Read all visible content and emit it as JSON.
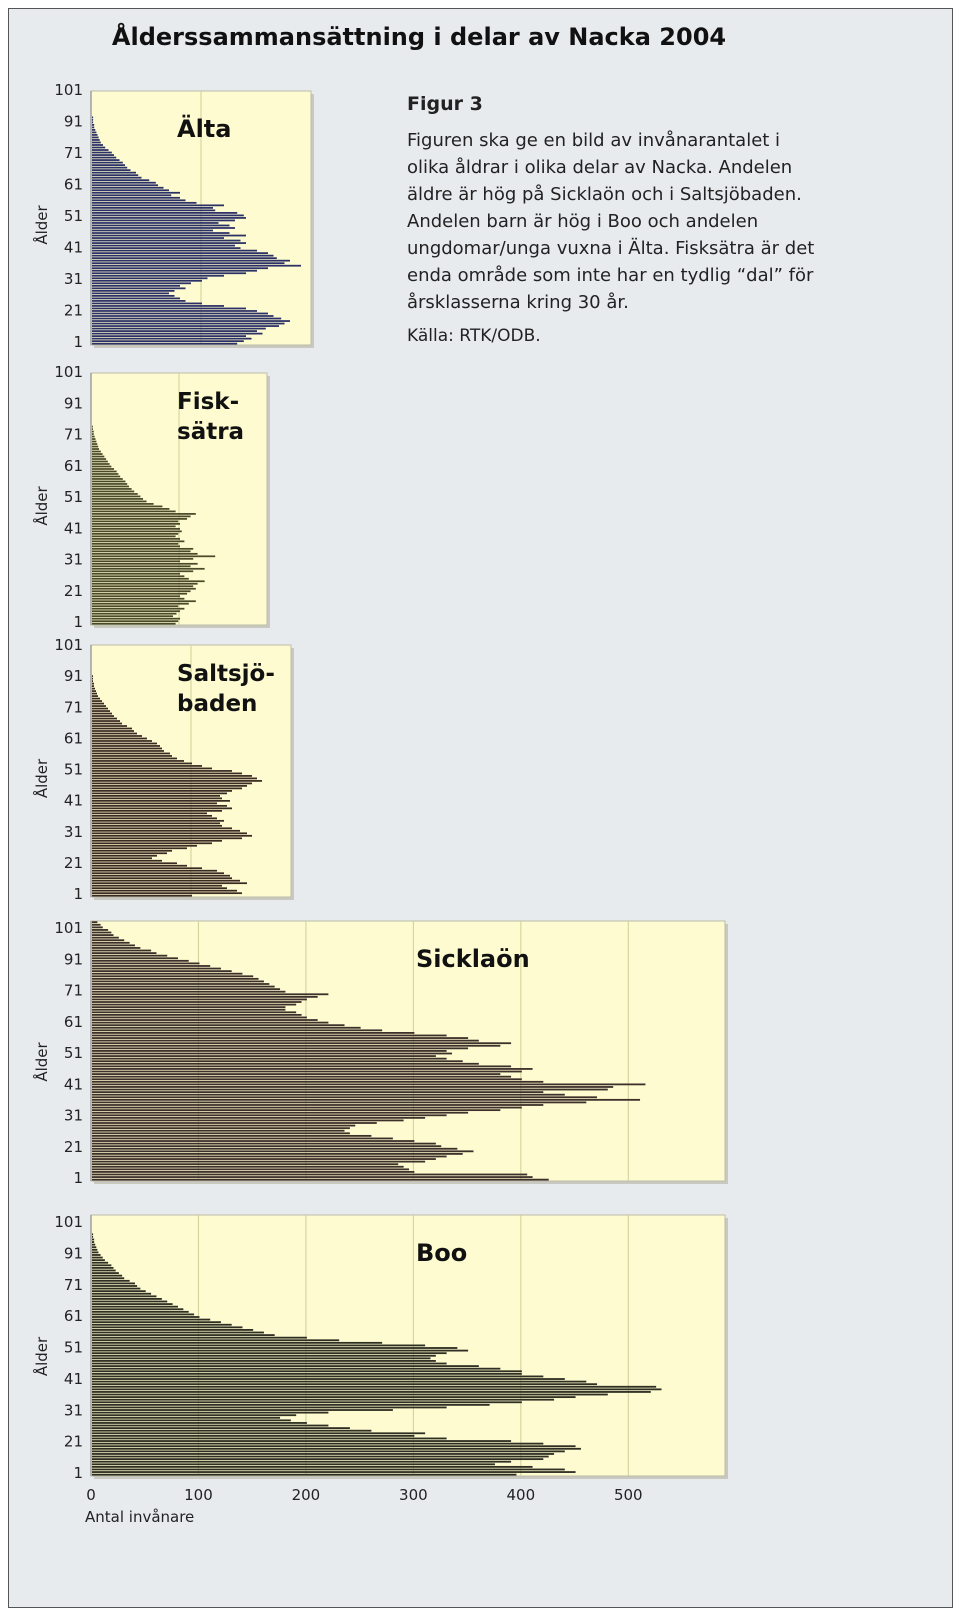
{
  "title": "Ålderssammansättning i delar av Nacka 2004",
  "caption": {
    "heading": "Figur 3",
    "body": "Figuren ska ge en bild av invånarantalet i olika åldrar i olika delar av Nacka. Andelen äldre är hög på Sicklaön och i Saltsjöbaden. Andelen barn är hög i Boo och andelen ungdomar/unga vuxna i Älta. Fisksätra är det enda område som inte har en tydlig “dal” för årsklasserna kring 30 år.",
    "source": "Källa: RTK/ODB."
  },
  "chart_data": [
    {
      "type": "bar",
      "orientation": "horizontal",
      "title": "Älta",
      "ylabel": "Ålder",
      "xlim": [
        0,
        200
      ],
      "y_ticks": [
        "1",
        "21",
        "31",
        "41",
        "51",
        "61",
        "71",
        "91",
        "101"
      ],
      "bar_color": "#2b3066",
      "ages": [
        1,
        101
      ],
      "values": [
        132,
        138,
        145,
        140,
        155,
        150,
        158,
        170,
        175,
        180,
        172,
        165,
        160,
        150,
        140,
        120,
        100,
        85,
        80,
        75,
        70,
        75,
        85,
        80,
        90,
        100,
        105,
        120,
        140,
        150,
        160,
        190,
        175,
        180,
        168,
        165,
        160,
        150,
        135,
        130,
        140,
        135,
        120,
        140,
        125,
        110,
        130,
        125,
        115,
        130,
        140,
        138,
        132,
        112,
        110,
        120,
        95,
        85,
        80,
        72,
        80,
        70,
        65,
        60,
        58,
        52,
        45,
        42,
        40,
        35,
        32,
        30,
        28,
        25,
        22,
        20,
        18,
        15,
        12,
        10,
        8,
        7,
        6,
        5,
        4,
        3,
        2,
        2,
        1,
        1,
        1,
        0,
        0,
        0,
        0,
        0,
        0,
        0,
        0,
        0,
        0
      ]
    },
    {
      "type": "bar",
      "orientation": "horizontal",
      "title": "Fisk- sätra",
      "ylabel": "Ålder",
      "xlim": [
        0,
        200
      ],
      "y_ticks": [
        "1",
        "21",
        "31",
        "41",
        "51",
        "61",
        "71",
        "91",
        "101"
      ],
      "bar_color": "#4a4a2a",
      "ages": [
        1,
        101
      ],
      "values": [
        95,
        98,
        100,
        92,
        96,
        100,
        105,
        98,
        110,
        118,
        105,
        100,
        108,
        112,
        118,
        115,
        120,
        128,
        110,
        105,
        100,
        115,
        128,
        112,
        120,
        100,
        115,
        140,
        120,
        112,
        115,
        100,
        98,
        105,
        100,
        95,
        98,
        102,
        100,
        95,
        100,
        98,
        108,
        112,
        118,
        95,
        88,
        80,
        70,
        62,
        58,
        55,
        52,
        48,
        45,
        42,
        40,
        38,
        35,
        32,
        30,
        28,
        25,
        22,
        20,
        18,
        16,
        14,
        12,
        10,
        8,
        7,
        6,
        5,
        4,
        3,
        2,
        2,
        1,
        1,
        0,
        0,
        0,
        0,
        0,
        0,
        0,
        0,
        0,
        0,
        0,
        0,
        0,
        0,
        0,
        0,
        0,
        0,
        0,
        0,
        0
      ]
    },
    {
      "type": "bar",
      "orientation": "horizontal",
      "title": "Saltsjö- baden",
      "ylabel": "Ålder",
      "xlim": [
        0,
        200
      ],
      "y_ticks": [
        "1",
        "21",
        "31",
        "41",
        "51",
        "61",
        "71",
        "91",
        "101"
      ],
      "bar_color": "#3a2a22",
      "ages": [
        1,
        101
      ],
      "values": [
        100,
        150,
        145,
        135,
        130,
        155,
        148,
        140,
        138,
        132,
        125,
        110,
        95,
        85,
        70,
        60,
        65,
        75,
        80,
        95,
        105,
        120,
        130,
        150,
        160,
        155,
        148,
        140,
        130,
        128,
        132,
        125,
        120,
        115,
        130,
        140,
        135,
        125,
        138,
        130,
        128,
        135,
        140,
        150,
        155,
        160,
        170,
        165,
        160,
        150,
        140,
        120,
        110,
        100,
        92,
        85,
        80,
        78,
        72,
        70,
        68,
        65,
        60,
        55,
        50,
        45,
        42,
        40,
        35,
        30,
        28,
        25,
        22,
        20,
        18,
        16,
        14,
        12,
        10,
        8,
        6,
        5,
        4,
        3,
        2,
        2,
        1,
        1,
        1,
        0,
        0,
        0,
        0,
        0,
        0,
        0,
        0,
        0,
        0,
        0,
        0
      ]
    },
    {
      "type": "bar",
      "orientation": "horizontal",
      "title": "Sicklaön",
      "ylabel": "Ålder",
      "xlim": [
        0,
        590
      ],
      "y_ticks": [
        "1",
        "21",
        "31",
        "41",
        "51",
        "61",
        "71",
        "91",
        "101"
      ],
      "bar_color": "#3d2f2a",
      "ages": [
        1,
        101
      ],
      "values": [
        425,
        410,
        405,
        300,
        295,
        290,
        285,
        310,
        320,
        330,
        345,
        355,
        340,
        325,
        320,
        300,
        280,
        260,
        240,
        235,
        240,
        245,
        265,
        290,
        310,
        330,
        350,
        380,
        400,
        420,
        460,
        510,
        470,
        440,
        420,
        480,
        485,
        515,
        420,
        400,
        390,
        380,
        400,
        410,
        390,
        360,
        345,
        330,
        320,
        335,
        330,
        350,
        380,
        390,
        360,
        350,
        330,
        300,
        270,
        250,
        235,
        220,
        210,
        200,
        195,
        190,
        180,
        180,
        190,
        195,
        200,
        210,
        220,
        180,
        175,
        170,
        165,
        160,
        155,
        150,
        140,
        130,
        120,
        110,
        100,
        90,
        80,
        70,
        60,
        55,
        45,
        40,
        35,
        30,
        25,
        20,
        18,
        15,
        10,
        8,
        5
      ]
    },
    {
      "type": "bar",
      "orientation": "horizontal",
      "title": "Boo",
      "ylabel": "Ålder",
      "xlabel": "Antal invånare",
      "xlim": [
        0,
        590
      ],
      "x_ticks": [
        0,
        100,
        200,
        300,
        400,
        500
      ],
      "y_ticks": [
        "1",
        "21",
        "31",
        "41",
        "51",
        "61",
        "71",
        "91",
        "101"
      ],
      "bar_color": "#2e2e22",
      "ages": [
        1,
        101
      ],
      "values": [
        395,
        450,
        440,
        410,
        375,
        390,
        420,
        425,
        430,
        440,
        455,
        450,
        420,
        390,
        330,
        300,
        310,
        260,
        240,
        220,
        200,
        185,
        175,
        190,
        220,
        280,
        330,
        370,
        400,
        430,
        450,
        480,
        520,
        530,
        525,
        470,
        460,
        440,
        420,
        400,
        400,
        380,
        360,
        330,
        320,
        315,
        320,
        330,
        350,
        340,
        310,
        270,
        230,
        200,
        170,
        160,
        150,
        140,
        130,
        120,
        110,
        100,
        95,
        90,
        85,
        80,
        75,
        70,
        65,
        60,
        55,
        50,
        45,
        42,
        40,
        35,
        30,
        28,
        25,
        22,
        20,
        18,
        15,
        12,
        10,
        8,
        6,
        5,
        4,
        3,
        2,
        2,
        1,
        1,
        0,
        0,
        0,
        0,
        0,
        0,
        0
      ]
    }
  ]
}
